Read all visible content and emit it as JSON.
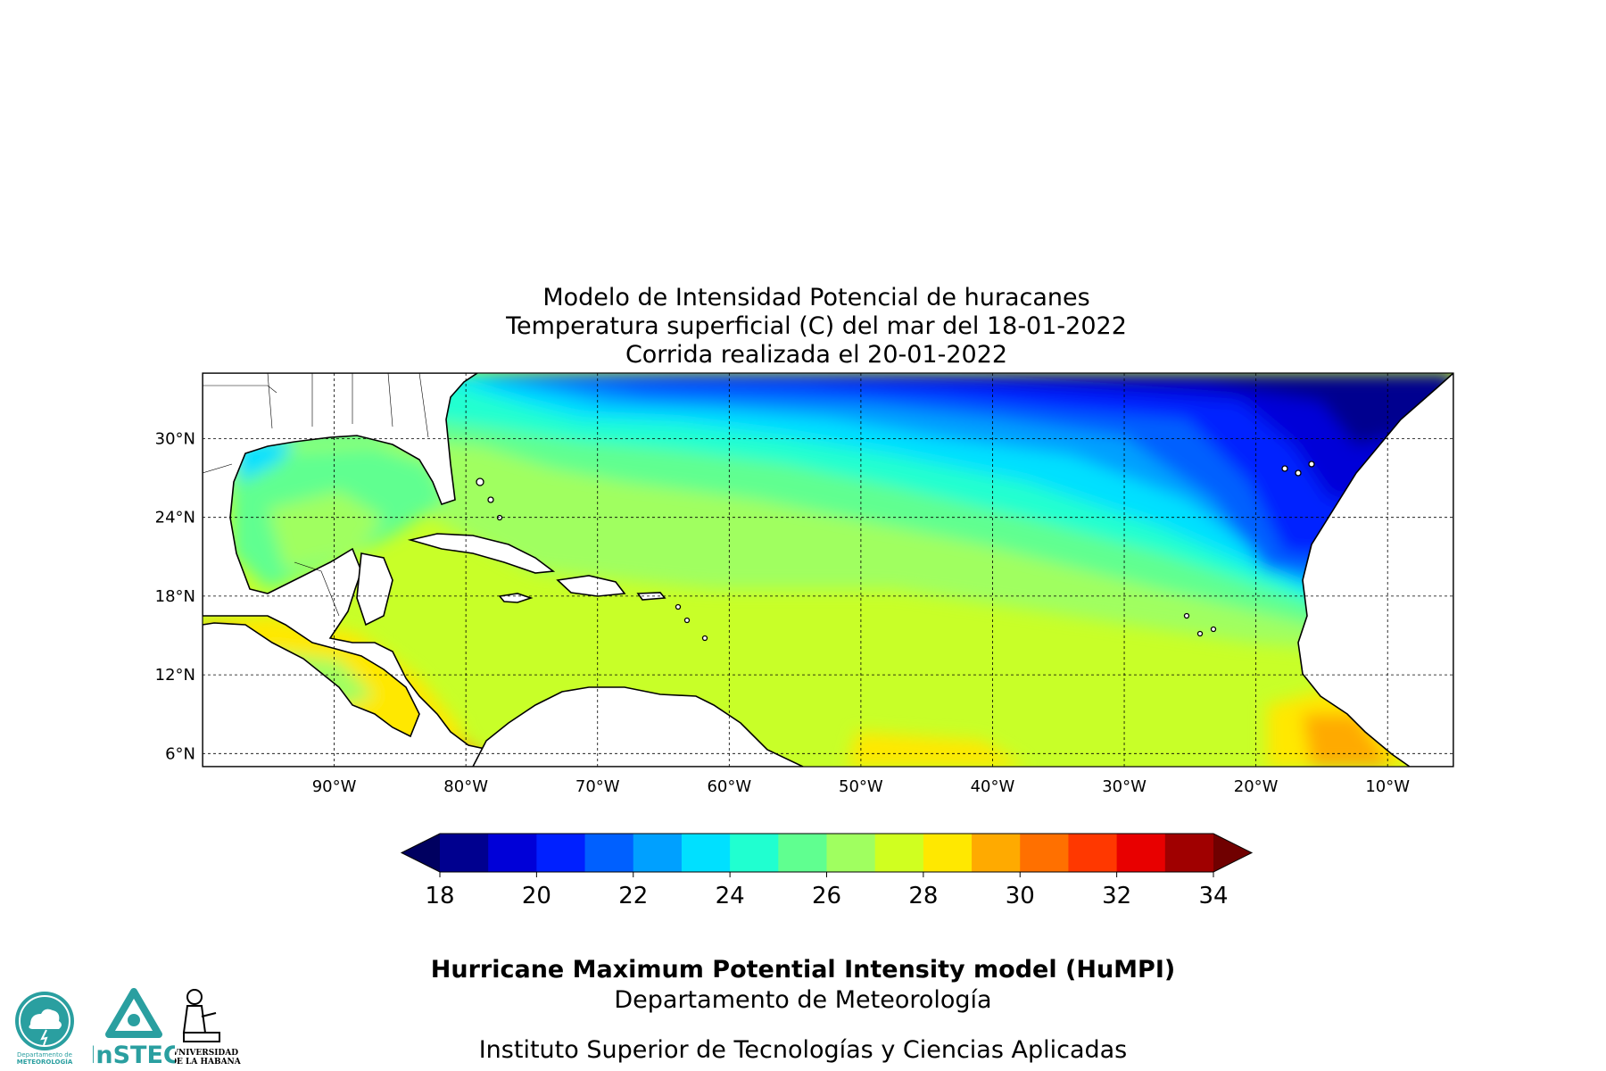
{
  "title": {
    "line1": "Modelo de Intensidad Potencial de huracanes",
    "line2": "Temperatura superficial (C) del mar  del 18-01-2022",
    "line3": "Corrida realizada el 20-01-2022"
  },
  "map": {
    "lon_range": [
      -100,
      -5
    ],
    "lat_range": [
      5,
      35
    ],
    "lon_ticks": [
      {
        "value": -90,
        "label": "90°W"
      },
      {
        "value": -80,
        "label": "80°W"
      },
      {
        "value": -70,
        "label": "70°W"
      },
      {
        "value": -60,
        "label": "60°W"
      },
      {
        "value": -50,
        "label": "50°W"
      },
      {
        "value": -40,
        "label": "40°W"
      },
      {
        "value": -30,
        "label": "30°W"
      },
      {
        "value": -20,
        "label": "20°W"
      },
      {
        "value": -10,
        "label": "10°W"
      }
    ],
    "lat_ticks": [
      {
        "value": 6,
        "label": "6°N"
      },
      {
        "value": 12,
        "label": "12°N"
      },
      {
        "value": 18,
        "label": "18°N"
      },
      {
        "value": 24,
        "label": "24°N"
      },
      {
        "value": 30,
        "label": "30°N"
      }
    ],
    "grid": "dashed",
    "variable": "Temperatura superficial del mar (C)"
  },
  "colorbar": {
    "min": 18,
    "max": 34,
    "step": 1,
    "extend": "both",
    "ticks": [
      "18",
      "20",
      "22",
      "24",
      "26",
      "28",
      "30",
      "32",
      "34"
    ],
    "colors": [
      "#00008f",
      "#0000d8",
      "#0020ff",
      "#0060ff",
      "#00a0ff",
      "#00e0ff",
      "#20ffd0",
      "#60ff90",
      "#a0ff60",
      "#d0ff20",
      "#ffe800",
      "#ffaa00",
      "#ff7000",
      "#ff3800",
      "#e80000",
      "#a00000"
    ],
    "under_color": "#000060",
    "over_color": "#700000"
  },
  "credits": {
    "model": "Hurricane Maximum Potential Intensity model (HuMPI)",
    "dept": "Departamento de Meteorología",
    "institute": "Instituto Superior de Tecnologías y Ciencias Aplicadas"
  },
  "logos": {
    "meteorologia": {
      "line1": "Departamento de",
      "line2": "METEOROLOGÍA",
      "color": "#2a9fa0"
    },
    "instec": {
      "text": "InSTEC",
      "color": "#2a9fa0"
    },
    "uh": {
      "line1": "VNIVERSIDAD",
      "line2": "DE LA HABANA"
    }
  }
}
